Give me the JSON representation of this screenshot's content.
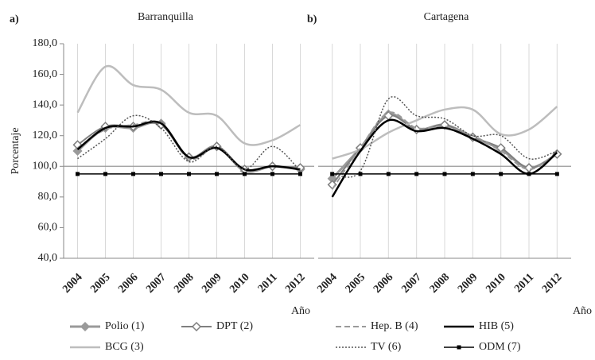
{
  "chart_data": [
    {
      "type": "line",
      "panel_label": "a)",
      "title": "Barranquilla",
      "y_label": "Porcentaje",
      "x_label": "Año",
      "categories": [
        "2004",
        "2005",
        "2006",
        "2007",
        "2008",
        "2009",
        "2010",
        "2011",
        "2012"
      ],
      "ylim": [
        40,
        180
      ],
      "yticks": [
        {
          "value": 40,
          "label": "40,0"
        },
        {
          "value": 60,
          "label": "60,0"
        },
        {
          "value": 80,
          "label": "80,0"
        },
        {
          "value": 100,
          "label": "100,0"
        },
        {
          "value": 120,
          "label": "120,0"
        },
        {
          "value": 140,
          "label": "140,0"
        },
        {
          "value": 160,
          "label": "160,0"
        },
        {
          "value": 180,
          "label": "180,0"
        }
      ],
      "grid": true,
      "reference_line": 100,
      "series": [
        {
          "name": "Polio (1)",
          "color": "#9a9a9a",
          "marker": "diamond",
          "marker_fill": "#9a9a9a",
          "width": 3,
          "values": [
            110,
            125,
            125,
            128,
            106,
            113,
            97,
            100,
            98
          ]
        },
        {
          "name": "DPT (2)",
          "color": "#7f7f7f",
          "marker": "diamond",
          "marker_fill": "#ffffff",
          "width": 2,
          "values": [
            114,
            126,
            126,
            127,
            106,
            113,
            98,
            100,
            99
          ]
        },
        {
          "name": "BCG (3)",
          "color": "#bdbdbd",
          "width": 2.5,
          "values": [
            135,
            165,
            153,
            150,
            135,
            133,
            115,
            117,
            127
          ]
        },
        {
          "name": "Hep. B (4)",
          "color": "#9a9a9a",
          "dash": "7 4",
          "width": 2,
          "values": [
            112,
            124,
            127,
            128,
            105,
            112,
            98,
            100,
            98
          ]
        },
        {
          "name": "HIB (5)",
          "color": "#000000",
          "width": 2.5,
          "values": [
            111,
            125,
            126,
            128,
            106,
            112,
            98,
            100,
            98
          ]
        },
        {
          "name": "TV (6)",
          "color": "#555555",
          "dash": "2 2",
          "width": 1.5,
          "values": [
            105,
            118,
            133,
            125,
            103,
            113,
            98,
            113,
            97
          ]
        },
        {
          "name": "ODM (7)",
          "color": "#000000",
          "marker": "square",
          "marker_fill": "#000000",
          "width": 1.5,
          "values": [
            95,
            95,
            95,
            95,
            95,
            95,
            95,
            95,
            95
          ]
        }
      ]
    },
    {
      "type": "line",
      "panel_label": "b)",
      "title": "Cartagena",
      "x_label": "Año",
      "categories": [
        "2004",
        "2005",
        "2006",
        "2007",
        "2008",
        "2009",
        "2010",
        "2011",
        "2012"
      ],
      "ylim": [
        40,
        180
      ],
      "grid": true,
      "reference_line": 100,
      "series": [
        {
          "color": "#9a9a9a",
          "marker": "diamond",
          "marker_fill": "#9a9a9a",
          "width": 3,
          "values": [
            92,
            112,
            134,
            124,
            127,
            119,
            111,
            99,
            108
          ]
        },
        {
          "color": "#7f7f7f",
          "marker": "diamond",
          "marker_fill": "#ffffff",
          "width": 2,
          "values": [
            88,
            112,
            133,
            124,
            127,
            119,
            112,
            99,
            108
          ]
        },
        {
          "color": "#bdbdbd",
          "width": 2.5,
          "values": [
            105,
            111,
            122,
            130,
            137,
            137,
            121,
            124,
            139
          ]
        },
        {
          "color": "#9a9a9a",
          "dash": "7 4",
          "width": 2,
          "values": [
            85,
            112,
            135,
            125,
            126,
            120,
            110,
            98,
            109
          ]
        },
        {
          "color": "#000000",
          "width": 2.5,
          "values": [
            80,
            110,
            130,
            123,
            125,
            118,
            108,
            95,
            109
          ]
        },
        {
          "color": "#555555",
          "dash": "2 2",
          "width": 1.5,
          "values": [
            95,
            97,
            144,
            133,
            131,
            120,
            120,
            105,
            110
          ]
        },
        {
          "color": "#000000",
          "marker": "square",
          "marker_fill": "#000000",
          "width": 1.5,
          "values": [
            95,
            95,
            95,
            95,
            95,
            95,
            95,
            95,
            95
          ]
        }
      ]
    }
  ]
}
